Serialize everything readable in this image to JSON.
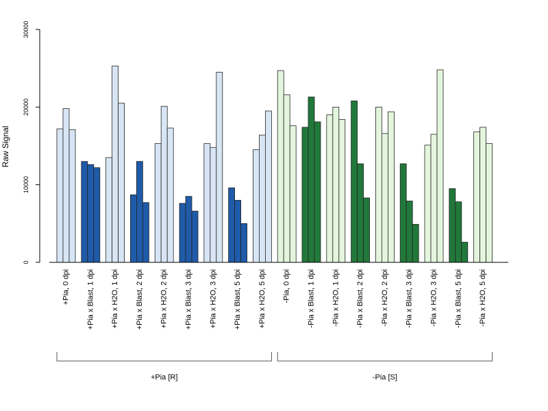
{
  "chart_data": {
    "type": "bar",
    "ylabel": "Raw Signal",
    "xlabel": "",
    "title": "",
    "ylim": [
      0,
      30000
    ],
    "y_ticks": [
      0,
      10000,
      20000,
      30000
    ],
    "y_tick_labels": [
      "0",
      "10000",
      "20000",
      "30000"
    ],
    "grid": false,
    "legend": "none",
    "categories": [
      "+Pia, 0 dpi",
      "+Pia x Blast, 1 dpi",
      "+Pia x H2O, 1 dpi",
      "+Pia x Blast, 2 dpi",
      "+Pia x H2O, 2 dpi",
      "+Pia x Blast, 3 dpi",
      "+Pia x H2O, 3 dpi",
      "+Pia x Blast, 5 dpi",
      "+Pia x H2O, 5 dpi",
      "-Pia, 0 dpi",
      "-Pia x Blast, 1 dpi",
      "-Pia x H2O, 1 dpi",
      "-Pia x Blast, 2 dpi",
      "-Pia x H2O, 2 dpi",
      "-Pia x Blast, 3 dpi",
      "-Pia x H2O, 3 dpi",
      "-Pia x Blast, 5 dpi",
      "-Pia x H2O, 5 dpi"
    ],
    "replicate_values": [
      [
        17200,
        19800,
        17100
      ],
      [
        13000,
        12600,
        12200
      ],
      [
        13500,
        25300,
        20500
      ],
      [
        8700,
        13000,
        7700
      ],
      [
        15300,
        20100,
        17300
      ],
      [
        7600,
        8500,
        6600
      ],
      [
        15300,
        14800,
        24500
      ],
      [
        9600,
        8000,
        5000
      ],
      [
        14500,
        16400,
        19500
      ],
      [
        24700,
        21600,
        17600
      ],
      [
        17400,
        21300,
        18100
      ],
      [
        19000,
        20000,
        18400
      ],
      [
        20800,
        12700,
        8300
      ],
      [
        20000,
        16600,
        19400
      ],
      [
        12700,
        7900,
        4900
      ],
      [
        15100,
        16500,
        24800
      ],
      [
        9500,
        7800,
        2600
      ],
      [
        16800,
        17400,
        15300
      ]
    ],
    "bar_colors": [
      "#d7e5f4",
      "#1f5ba8",
      "#d7e5f4",
      "#1f5ba8",
      "#d7e5f4",
      "#1f5ba8",
      "#d7e5f4",
      "#1f5ba8",
      "#d7e5f4",
      "#e3f5dc",
      "#21783a",
      "#e3f5dc",
      "#21783a",
      "#e3f5dc",
      "#21783a",
      "#e3f5dc",
      "#21783a",
      "#e3f5dc"
    ],
    "groups": [
      {
        "label": "+Pia [R]",
        "first": 0,
        "last": 8
      },
      {
        "label": "-Pia [S]",
        "first": 9,
        "last": 17
      }
    ]
  }
}
